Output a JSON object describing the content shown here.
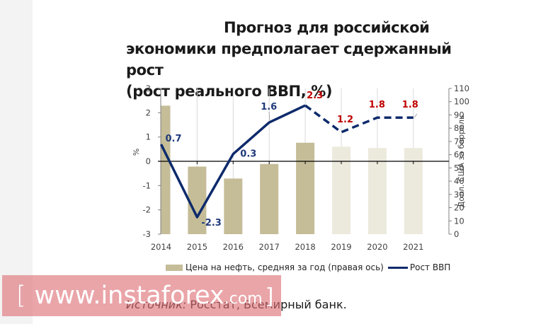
{
  "title": {
    "line1": "Прогноз для российской",
    "line2": "экономики предполагает сдержанный рост",
    "line3": "(рост реального ВВП, %)"
  },
  "colors": {
    "bar_actual": "#c5bd98",
    "bar_forecast": "#ece9dd",
    "line": "#0d2a6b",
    "label_actual": "#1f3a7a",
    "label_forecast": "#c00000",
    "gridline": "#d9d9d9",
    "axis": "#000000"
  },
  "legend": {
    "bar_label": "Цена на нефть, средняя за год (правая ось)",
    "line_label": "Рост ВВП"
  },
  "source": {
    "label": "Источник:",
    "text": " Росстат, Всемирный банк."
  },
  "watermark": {
    "open": "[",
    "text": "www.instaforex",
    "com": ".com",
    "close": "]"
  },
  "chart_data": {
    "type": "bar+line",
    "title": "Прогноз для российской экономики предполагает сдержанный рост (рост реального ВВП, %)",
    "categories": [
      "2014",
      "2015",
      "2016",
      "2017",
      "2018",
      "2019",
      "2020",
      "2021"
    ],
    "series": [
      {
        "name": "Цена на нефть, средняя за год (правая ось)",
        "type": "bar",
        "axis": "right",
        "values": [
          97,
          51,
          42,
          53,
          69,
          66,
          65,
          65
        ],
        "forecast_from_index": 5
      },
      {
        "name": "Рост ВВП",
        "type": "line",
        "axis": "left",
        "values": [
          0.7,
          -2.3,
          0.3,
          1.6,
          2.3,
          1.2,
          1.8,
          1.8
        ],
        "data_labels": [
          "0.7",
          "-2.3",
          "0.3",
          "1.6",
          "2.3",
          "1.2",
          "1.8",
          "1.8"
        ],
        "dashed_from_index": 4
      }
    ],
    "ylabel": "%",
    "ylim": [
      -3,
      3
    ],
    "yticks": [
      -3,
      -2,
      -1,
      0,
      1,
      2,
      3
    ],
    "y2label": "Долл. США за баррель",
    "y2lim": [
      0,
      110
    ],
    "y2ticks": [
      0,
      10,
      20,
      30,
      40,
      50,
      60,
      70,
      80,
      90,
      100,
      110
    ],
    "grid": "vertical",
    "legend_position": "bottom"
  }
}
